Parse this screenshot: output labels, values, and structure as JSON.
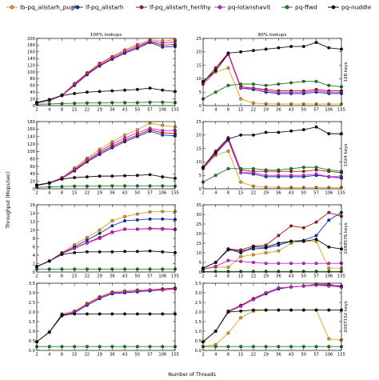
{
  "figure": {
    "xlabel": "Number of Threads",
    "ylabel": "Throughput (Mops/sec)"
  },
  "legend": [
    {
      "label": "lb-pq_alistarh_pugh",
      "color": "#e0a020",
      "marker": "circle"
    },
    {
      "label": "lf-pq_alistarh",
      "color": "#1030c0",
      "marker": "circle"
    },
    {
      "label": "lf-pq_alistarh_herlihy",
      "color": "#b01818",
      "marker": "circle"
    },
    {
      "label": "pq-lotanshavit",
      "color": "#d020d8",
      "marker": "circle"
    },
    {
      "label": "pq-ffwd",
      "color": "#208020",
      "marker": "circle"
    },
    {
      "label": "pq-nuddle",
      "color": "#111111",
      "marker": "circle"
    }
  ],
  "chart_data": [
    {
      "type": "line",
      "title": "100% lookups",
      "side_label": "",
      "categories": [
        "2",
        "4",
        "8",
        "15",
        "22",
        "29",
        "36",
        "43",
        "50",
        "57",
        "106",
        "155"
      ],
      "ylim": [
        0,
        200
      ],
      "yticks": [
        0,
        20,
        40,
        60,
        80,
        100,
        120,
        140,
        160,
        180,
        200
      ],
      "series": [
        {
          "name": "lb-pq_alistarh_pugh",
          "values": [
            8,
            16,
            32,
            66,
            98,
            126,
            146,
            166,
            182,
            196,
            192,
            196
          ]
        },
        {
          "name": "lf-pq_alistarh",
          "values": [
            7,
            15,
            30,
            60,
            92,
            118,
            138,
            156,
            170,
            188,
            174,
            176
          ]
        },
        {
          "name": "lf-pq_alistarh_herlihy",
          "values": [
            7,
            15,
            30,
            62,
            94,
            120,
            140,
            158,
            174,
            190,
            180,
            182
          ]
        },
        {
          "name": "pq-lotanshavit",
          "values": [
            8,
            15,
            31,
            64,
            96,
            124,
            144,
            162,
            178,
            192,
            186,
            190
          ]
        },
        {
          "name": "pq-ffwd",
          "values": [
            4,
            5,
            6,
            7,
            8,
            8,
            9,
            9,
            9,
            10,
            10,
            9
          ]
        },
        {
          "name": "pq-nuddle",
          "values": [
            10,
            18,
            30,
            36,
            40,
            42,
            44,
            46,
            48,
            52,
            46,
            42
          ]
        }
      ]
    },
    {
      "type": "line",
      "title": "80% lookups",
      "side_label": "128 keys",
      "categories": [
        "2",
        "4",
        "8",
        "15",
        "22",
        "29",
        "36",
        "43",
        "50",
        "57",
        "106",
        "155"
      ],
      "ylim": [
        0,
        25
      ],
      "yticks": [
        0,
        5,
        10,
        15,
        20,
        25
      ],
      "series": [
        {
          "name": "lb-pq_alistarh_pugh",
          "values": [
            8,
            12.5,
            14,
            2.5,
            1,
            0.7,
            0.6,
            0.6,
            0.6,
            0.6,
            0.6,
            0.6
          ]
        },
        {
          "name": "lf-pq_alistarh",
          "values": [
            8.5,
            14,
            19.5,
            6.5,
            6,
            5,
            4.5,
            4.5,
            4.5,
            5,
            4.5,
            4.5
          ]
        },
        {
          "name": "lf-pq_alistarh_herlihy",
          "values": [
            8.5,
            14,
            19.5,
            7,
            6.5,
            6,
            5.5,
            5.5,
            5.5,
            6,
            5.5,
            5.5
          ]
        },
        {
          "name": "pq-lotanshavit",
          "values": [
            8,
            13,
            19,
            6.5,
            6.5,
            5.5,
            5,
            5,
            5,
            5.5,
            5,
            5
          ]
        },
        {
          "name": "pq-ffwd",
          "values": [
            2.5,
            5,
            7.5,
            8,
            8,
            7.5,
            8,
            8.5,
            9,
            9,
            7.5,
            7
          ]
        },
        {
          "name": "pq-nuddle",
          "values": [
            9,
            13,
            19.5,
            20,
            20.5,
            21,
            21.5,
            22,
            22,
            23.5,
            21.5,
            21
          ]
        }
      ]
    },
    {
      "type": "line",
      "title": "",
      "side_label": "",
      "categories": [
        "2",
        "4",
        "8",
        "15",
        "22",
        "29",
        "36",
        "43",
        "50",
        "57",
        "106",
        "155"
      ],
      "ylim": [
        0,
        180
      ],
      "yticks": [
        0,
        20,
        40,
        60,
        80,
        100,
        120,
        140,
        160,
        180
      ],
      "series": [
        {
          "name": "lb-pq_alistarh_pugh",
          "values": [
            10,
            16,
            30,
            56,
            82,
            106,
            126,
            144,
            158,
            176,
            170,
            166
          ]
        },
        {
          "name": "lf-pq_alistarh",
          "values": [
            9,
            15,
            28,
            48,
            72,
            92,
            110,
            126,
            140,
            154,
            144,
            142
          ]
        },
        {
          "name": "lf-pq_alistarh_herlihy",
          "values": [
            9,
            15,
            28,
            50,
            74,
            96,
            114,
            130,
            144,
            158,
            150,
            148
          ]
        },
        {
          "name": "pq-lotanshavit",
          "values": [
            10,
            16,
            29,
            52,
            78,
            100,
            120,
            136,
            150,
            162,
            156,
            156
          ]
        },
        {
          "name": "pq-ffwd",
          "values": [
            4,
            5,
            6,
            7,
            7,
            7,
            8,
            8,
            8,
            8,
            8,
            7
          ]
        },
        {
          "name": "pq-nuddle",
          "values": [
            10,
            16,
            26,
            30,
            32,
            34,
            34,
            35,
            36,
            38,
            32,
            28
          ]
        }
      ]
    },
    {
      "type": "line",
      "title": "",
      "side_label": "1024 keys",
      "categories": [
        "2",
        "4",
        "8",
        "15",
        "22",
        "29",
        "36",
        "43",
        "50",
        "57",
        "106",
        "155"
      ],
      "ylim": [
        0,
        25
      ],
      "yticks": [
        0,
        5,
        10,
        15,
        20,
        25
      ],
      "series": [
        {
          "name": "lb-pq_alistarh_pugh",
          "values": [
            7.5,
            12.5,
            14,
            2.5,
            1,
            0.6,
            0.5,
            0.5,
            0.5,
            0.5,
            0.5,
            0.5
          ]
        },
        {
          "name": "lf-pq_alistarh",
          "values": [
            8,
            13.5,
            18.5,
            6,
            5.5,
            4.5,
            4.5,
            4.5,
            4.5,
            5,
            4.5,
            4
          ]
        },
        {
          "name": "lf-pq_alistarh_herlihy",
          "values": [
            8,
            14,
            19,
            7,
            6.5,
            6.5,
            6.5,
            6.5,
            6.5,
            7,
            6.5,
            6
          ]
        },
        {
          "name": "pq-lotanshavit",
          "values": [
            7.5,
            13,
            18,
            6,
            6,
            5,
            5,
            5,
            5,
            5.5,
            4.5,
            4.5
          ]
        },
        {
          "name": "pq-ffwd",
          "values": [
            2.5,
            5,
            7.5,
            7.5,
            7.5,
            7,
            7,
            7.5,
            8,
            8,
            7,
            6.5
          ]
        },
        {
          "name": "pq-nuddle",
          "values": [
            8,
            13.5,
            18.5,
            20,
            20,
            21,
            21,
            21.5,
            22,
            23,
            20.5,
            20.5
          ]
        }
      ]
    },
    {
      "type": "line",
      "title": "",
      "side_label": "",
      "categories": [
        "2",
        "4",
        "8",
        "15",
        "22",
        "29",
        "36",
        "43",
        "50",
        "57",
        "106",
        "155"
      ],
      "ylim": [
        0,
        16
      ],
      "yticks": [
        0,
        2,
        4,
        6,
        8,
        10,
        12,
        14,
        16
      ],
      "series": [
        {
          "name": "lb-pq_alistarh_pugh",
          "values": [
            1.3,
            2.6,
            4.6,
            6.5,
            8.2,
            10,
            12.2,
            13.2,
            13.8,
            14.3,
            14.4,
            14.4
          ]
        },
        {
          "name": "lf-pq_alistarh",
          "values": [
            1.3,
            2.6,
            4.5,
            6,
            7.6,
            9.2,
            11,
            12.2,
            12.4,
            12.6,
            12.6,
            12.5
          ]
        },
        {
          "name": "lf-pq_alistarh_herlihy",
          "values": [
            1.3,
            2.6,
            4.4,
            5.7,
            7,
            8.2,
            9.5,
            10.2,
            10.2,
            10.4,
            10.3,
            10.2
          ]
        },
        {
          "name": "pq-lotanshavit",
          "values": [
            1.3,
            2.6,
            4.4,
            5.6,
            6.9,
            8,
            9.4,
            10.2,
            10.2,
            10.3,
            10.2,
            10.1
          ]
        },
        {
          "name": "pq-ffwd",
          "values": [
            0.7,
            0.7,
            0.7,
            0.7,
            0.7,
            0.7,
            0.7,
            0.7,
            0.7,
            0.7,
            0.7,
            0.7
          ]
        },
        {
          "name": "pq-nuddle",
          "values": [
            1.3,
            2.6,
            4.2,
            4.6,
            4.8,
            4.8,
            4.8,
            4.9,
            4.9,
            5,
            4.8,
            4.6
          ]
        }
      ]
    },
    {
      "type": "line",
      "title": "",
      "side_label": "1048576 keys",
      "categories": [
        "2",
        "4",
        "8",
        "15",
        "22",
        "29",
        "36",
        "43",
        "50",
        "57",
        "106",
        "155"
      ],
      "ylim": [
        0,
        35
      ],
      "yticks": [
        0,
        5,
        10,
        15,
        20,
        25,
        30,
        35
      ],
      "series": [
        {
          "name": "lb-pq_alistarh_pugh",
          "values": [
            1.5,
            2.5,
            2.5,
            8,
            9,
            10,
            11,
            15,
            16,
            16,
            2,
            2
          ]
        },
        {
          "name": "lf-pq_alistarh",
          "values": [
            2,
            5,
            11.5,
            11,
            12,
            12.5,
            14,
            16,
            16.5,
            19,
            27,
            31
          ]
        },
        {
          "name": "lf-pq_alistarh_herlihy",
          "values": [
            2,
            5,
            12,
            11.5,
            13.5,
            14,
            19,
            24,
            23,
            26,
            31,
            29
          ]
        },
        {
          "name": "pq-lotanshavit",
          "values": [
            1.5,
            3,
            6,
            5.5,
            5,
            4.5,
            4.5,
            4.5,
            4.5,
            4.5,
            4.5,
            4.5
          ]
        },
        {
          "name": "pq-ffwd",
          "values": [
            0.3,
            0.3,
            0.3,
            0.3,
            0.3,
            0.3,
            0.3,
            0.3,
            0.3,
            0.3,
            0.3,
            0.3
          ]
        },
        {
          "name": "pq-nuddle",
          "values": [
            2,
            5,
            12,
            10,
            13,
            13,
            15,
            16,
            16,
            17,
            13,
            12
          ]
        }
      ]
    },
    {
      "type": "line",
      "title": "",
      "side_label": "",
      "categories": [
        "2",
        "4",
        "8",
        "15",
        "22",
        "29",
        "36",
        "43",
        "50",
        "57",
        "106",
        "155"
      ],
      "ylim": [
        0,
        3.5
      ],
      "yticks": [
        0,
        0.5,
        1.0,
        1.5,
        2.0,
        2.5,
        3.0,
        3.5
      ],
      "series": [
        {
          "name": "lb-pq_alistarh_pugh",
          "values": [
            0.45,
            0.95,
            1.9,
            2.05,
            2.45,
            2.8,
            3.05,
            3.1,
            3.15,
            3.15,
            3.2,
            3.2
          ]
        },
        {
          "name": "lf-pq_alistarh",
          "values": [
            0.45,
            0.95,
            1.8,
            1.95,
            2.35,
            2.7,
            2.95,
            3.0,
            3.05,
            3.1,
            3.15,
            3.2
          ]
        },
        {
          "name": "lf-pq_alistarh_herlihy",
          "values": [
            0.45,
            0.95,
            1.85,
            2.0,
            2.4,
            2.75,
            3.0,
            3.05,
            3.1,
            3.15,
            3.2,
            3.25
          ]
        },
        {
          "name": "pq-lotanshavit",
          "values": [
            0.45,
            0.95,
            1.85,
            2.0,
            2.4,
            2.75,
            3.0,
            3.05,
            3.1,
            3.15,
            3.15,
            3.2
          ]
        },
        {
          "name": "pq-ffwd",
          "values": [
            0.2,
            0.2,
            0.2,
            0.2,
            0.2,
            0.2,
            0.2,
            0.2,
            0.2,
            0.2,
            0.2,
            0.2
          ]
        },
        {
          "name": "pq-nuddle",
          "values": [
            0.45,
            0.95,
            1.85,
            1.9,
            1.9,
            1.9,
            1.9,
            1.9,
            1.9,
            1.9,
            1.9,
            1.9
          ]
        }
      ]
    },
    {
      "type": "line",
      "title": "",
      "side_label": "2097152 keys",
      "categories": [
        "2",
        "4",
        "8",
        "15",
        "22",
        "29",
        "36",
        "43",
        "50",
        "57",
        "106",
        "155"
      ],
      "ylim": [
        0,
        3.5
      ],
      "yticks": [
        0,
        0.5,
        1.0,
        1.5,
        2.0,
        2.5,
        3.0,
        3.5
      ],
      "series": [
        {
          "name": "lb-pq_alistarh_pugh",
          "values": [
            0.2,
            0.3,
            0.9,
            1.7,
            2.05,
            2.1,
            2.1,
            2.1,
            2.1,
            2.1,
            0.6,
            0.55
          ]
        },
        {
          "name": "lf-pq_alistarh",
          "values": [
            0.45,
            1.0,
            2.0,
            2.3,
            2.65,
            2.95,
            3.2,
            3.3,
            3.35,
            3.4,
            3.4,
            3.35
          ]
        },
        {
          "name": "lf-pq_alistarh_herlihy",
          "values": [
            0.45,
            1.0,
            2.05,
            2.35,
            2.7,
            3.0,
            3.25,
            3.3,
            3.35,
            3.45,
            3.45,
            3.3
          ]
        },
        {
          "name": "pq-lotanshavit",
          "values": [
            0.45,
            1.0,
            2.0,
            2.3,
            2.65,
            3.0,
            3.25,
            3.3,
            3.35,
            3.4,
            3.35,
            3.3
          ]
        },
        {
          "name": "pq-ffwd",
          "values": [
            0.2,
            0.2,
            0.2,
            0.2,
            0.2,
            0.2,
            0.2,
            0.2,
            0.2,
            0.2,
            0.2,
            0.2
          ]
        },
        {
          "name": "pq-nuddle",
          "values": [
            0.45,
            1.0,
            2.0,
            2.05,
            2.1,
            2.1,
            2.1,
            2.1,
            2.1,
            2.1,
            2.1,
            2.1
          ]
        }
      ]
    }
  ]
}
